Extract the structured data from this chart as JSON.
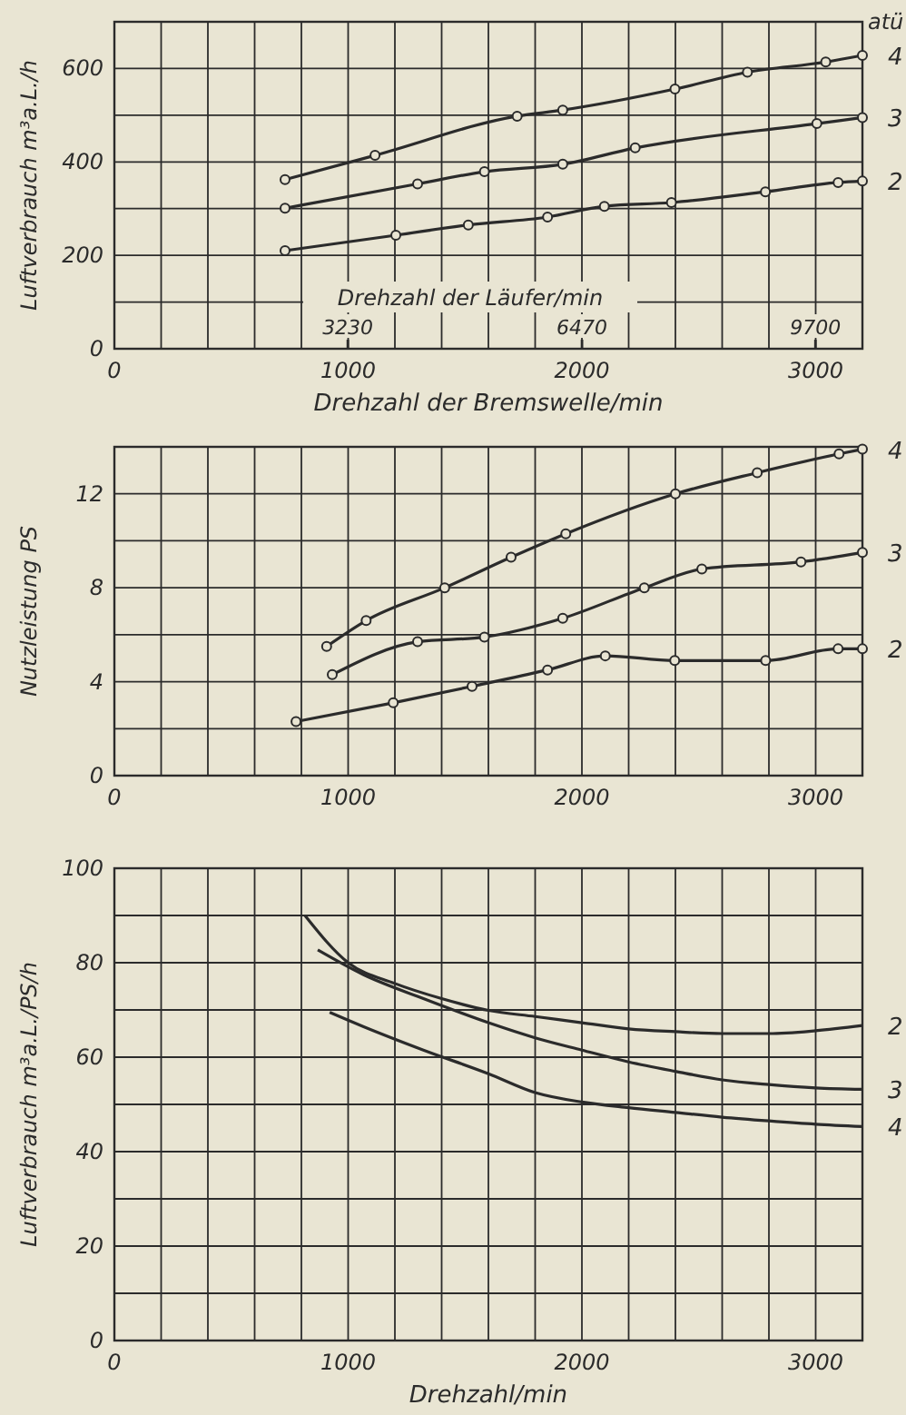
{
  "chart_data": [
    {
      "type": "line",
      "ylabel": "Luftverbrauch m³a.L./h",
      "xlabel": "Drehzahl der Bremswelle/min",
      "x2label": "Drehzahl der Läufer/min",
      "legend_title": "atü",
      "grid": true,
      "marker": "circle",
      "line_style": "solid",
      "xlim": [
        0,
        3200
      ],
      "ylim": [
        0,
        700
      ],
      "xticks": [
        0,
        {
          "value": 200,
          "label": null
        },
        {
          "value": 400,
          "label": null
        },
        {
          "value": 600,
          "label": null
        },
        {
          "value": 800,
          "label": null
        },
        1000,
        {
          "value": 1200,
          "label": null
        },
        {
          "value": 1400,
          "label": null
        },
        {
          "value": 1600,
          "label": null
        },
        {
          "value": 1800,
          "label": null
        },
        2000,
        {
          "value": 2200,
          "label": null
        },
        {
          "value": 2400,
          "label": null
        },
        {
          "value": 2600,
          "label": null
        },
        {
          "value": 2800,
          "label": null
        },
        3000,
        {
          "value": 3200,
          "label": null
        }
      ],
      "yticks": [
        0,
        {
          "value": 100,
          "label": null
        },
        200,
        {
          "value": 300,
          "label": null
        },
        400,
        {
          "value": 500,
          "label": null
        },
        600,
        {
          "value": 700,
          "label": null
        }
      ],
      "x2lim": [
        0,
        10350
      ],
      "x2ticks": [
        3230,
        6470,
        9700
      ],
      "series": [
        {
          "name": "4",
          "color": "#2b2b2b",
          "x": [
            730,
            1115,
            1723,
            1918,
            2398,
            2708,
            3043,
            3200
          ],
          "values": [
            362,
            414,
            498,
            511,
            556,
            592,
            614,
            628
          ]
        },
        {
          "name": "3",
          "color": "#2b2b2b",
          "x": [
            730,
            1297,
            1583,
            1918,
            2228,
            3005,
            3200
          ],
          "values": [
            301,
            353,
            379,
            395,
            430,
            482,
            495
          ]
        },
        {
          "name": "2",
          "color": "#2b2b2b",
          "x": [
            730,
            1204,
            1514,
            1853,
            2096,
            2383,
            2785,
            3096,
            3200
          ],
          "values": [
            210,
            243,
            265,
            282,
            305,
            313,
            336,
            356,
            359
          ]
        }
      ]
    },
    {
      "type": "line",
      "ylabel": "Nutzleistung PS",
      "grid": true,
      "marker": "circle",
      "line_style": "solid",
      "xlim": [
        0,
        3200
      ],
      "ylim": [
        0,
        14
      ],
      "xticks": [
        0,
        {
          "value": 200,
          "label": null
        },
        {
          "value": 400,
          "label": null
        },
        {
          "value": 600,
          "label": null
        },
        {
          "value": 800,
          "label": null
        },
        1000,
        {
          "value": 1200,
          "label": null
        },
        {
          "value": 1400,
          "label": null
        },
        {
          "value": 1600,
          "label": null
        },
        {
          "value": 1800,
          "label": null
        },
        2000,
        {
          "value": 2200,
          "label": null
        },
        {
          "value": 2400,
          "label": null
        },
        {
          "value": 2600,
          "label": null
        },
        {
          "value": 2800,
          "label": null
        },
        3000,
        {
          "value": 3200,
          "label": null
        }
      ],
      "yticks": [
        0,
        {
          "value": 2,
          "label": null
        },
        4,
        {
          "value": 6,
          "label": null
        },
        8,
        {
          "value": 10,
          "label": null
        },
        12,
        {
          "value": 14,
          "label": null
        }
      ],
      "series": [
        {
          "name": "4",
          "color": "#2b2b2b",
          "x": [
            908,
            1077,
            1413,
            1697,
            1931,
            2400,
            2750,
            3100,
            3200
          ],
          "values": [
            5.5,
            6.6,
            8.0,
            9.3,
            10.3,
            12.0,
            12.9,
            13.7,
            13.9
          ]
        },
        {
          "name": "3",
          "color": "#2b2b2b",
          "x": [
            932,
            1297,
            1583,
            1918,
            2267,
            2513,
            2937,
            3200
          ],
          "values": [
            4.3,
            5.7,
            5.9,
            6.7,
            8.0,
            8.8,
            9.1,
            9.5
          ]
        },
        {
          "name": "2",
          "color": "#2b2b2b",
          "x": [
            777,
            1193,
            1530,
            1853,
            2100,
            2397,
            2786,
            3096,
            3200
          ],
          "values": [
            2.3,
            3.1,
            3.8,
            4.5,
            5.1,
            4.9,
            4.9,
            5.4,
            5.4
          ]
        }
      ]
    },
    {
      "type": "line",
      "ylabel": "Luftverbrauch m³a.L./PS/h",
      "xlabel": "Drehzahl/min",
      "grid": true,
      "line_style": "solid",
      "xlim": [
        0,
        3200
      ],
      "ylim": [
        0,
        100
      ],
      "xticks": [
        0,
        {
          "value": 200,
          "label": null
        },
        {
          "value": 400,
          "label": null
        },
        {
          "value": 600,
          "label": null
        },
        {
          "value": 800,
          "label": null
        },
        1000,
        {
          "value": 1200,
          "label": null
        },
        {
          "value": 1400,
          "label": null
        },
        {
          "value": 1600,
          "label": null
        },
        {
          "value": 1800,
          "label": null
        },
        2000,
        {
          "value": 2200,
          "label": null
        },
        {
          "value": 2400,
          "label": null
        },
        {
          "value": 2600,
          "label": null
        },
        {
          "value": 2800,
          "label": null
        },
        3000,
        {
          "value": 3200,
          "label": null
        }
      ],
      "yticks": [
        0,
        {
          "value": 10,
          "label": null
        },
        20,
        {
          "value": 30,
          "label": null
        },
        40,
        {
          "value": 50,
          "label": null
        },
        60,
        {
          "value": 70,
          "label": null
        },
        80,
        {
          "value": 90,
          "label": null
        },
        100
      ],
      "series": [
        {
          "name": "2",
          "color": "#2b2b2b",
          "x": [
            815,
            1000,
            1200,
            1400,
            1600,
            1800,
            2000,
            2200,
            2400,
            2600,
            2800,
            3000,
            3200
          ],
          "values": [
            90,
            80,
            75.6,
            72.4,
            69.9,
            68.6,
            67.3,
            66,
            65.4,
            65,
            65,
            65.6,
            66.7
          ]
        },
        {
          "name": "3",
          "color": "#2b2b2b",
          "x": [
            870,
            1064,
            1322,
            1600,
            1800,
            2000,
            2200,
            2400,
            2600,
            2800,
            3000,
            3200
          ],
          "values": [
            82.7,
            77.5,
            72.4,
            67.3,
            64.1,
            61.5,
            59,
            57,
            55.2,
            54.2,
            53.5,
            53.2
          ]
        },
        {
          "name": "4",
          "color": "#2b2b2b",
          "x": [
            921,
            1064,
            1322,
            1600,
            1800,
            2000,
            2200,
            2400,
            2600,
            2800,
            3000,
            3200
          ],
          "values": [
            69.5,
            66.5,
            61.5,
            56.5,
            52.5,
            50.5,
            49.3,
            48.3,
            47.3,
            46.5,
            45.8,
            45.3
          ]
        }
      ]
    }
  ]
}
